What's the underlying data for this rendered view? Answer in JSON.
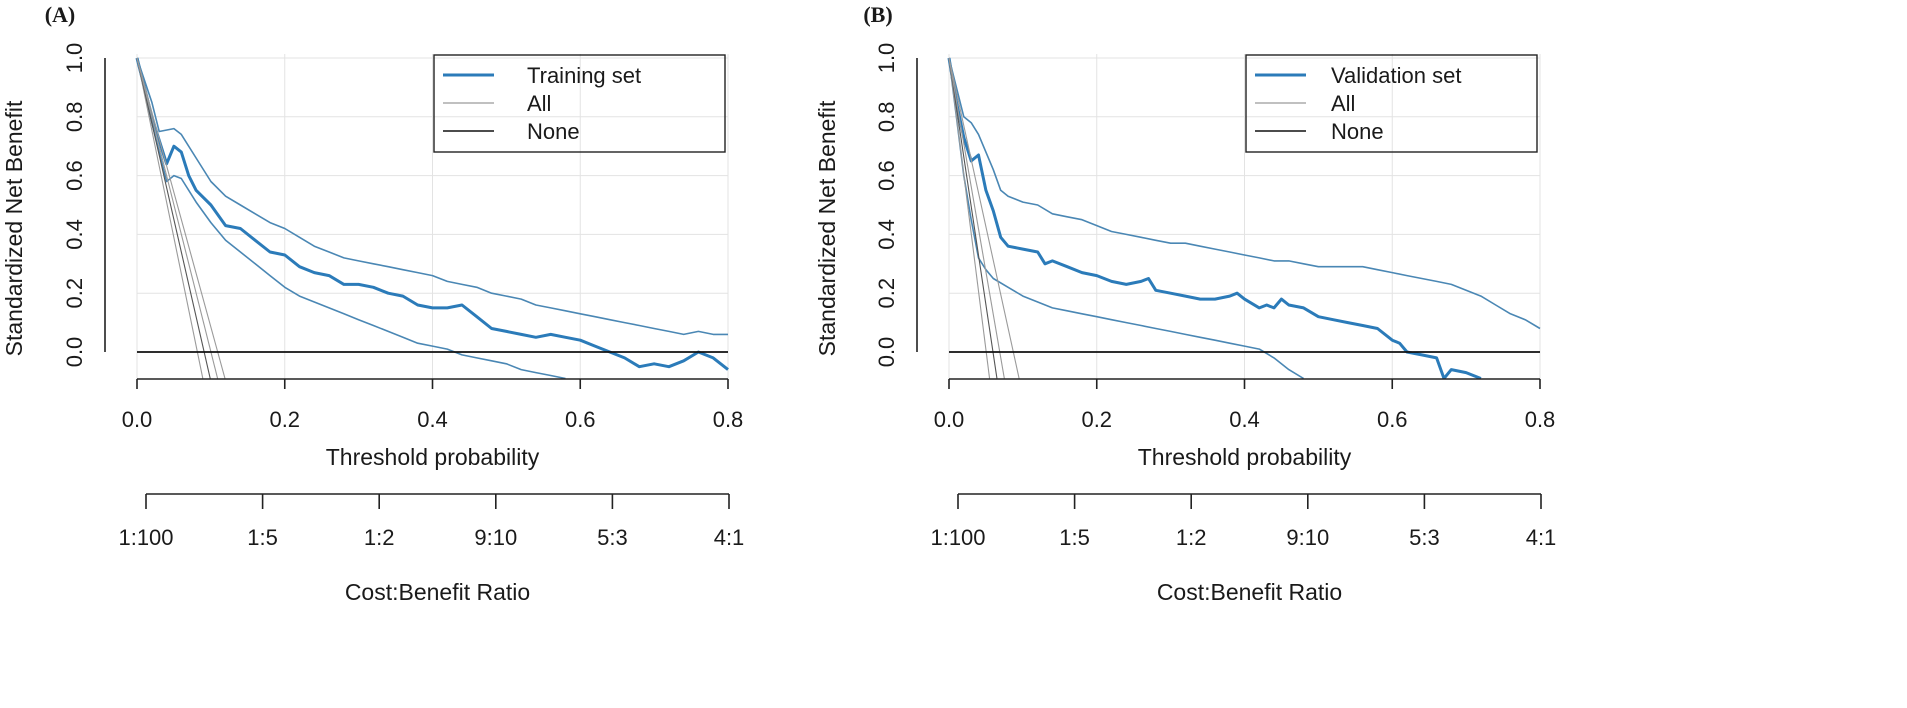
{
  "chart_data": [
    {
      "panel_label": "(A)",
      "type": "line",
      "title": "",
      "xlabel": "Threshold probability",
      "ylabel": "Standardized Net Benefit",
      "xlim": [
        0,
        0.8
      ],
      "ylim": [
        -0.09,
        1.0
      ],
      "x_ticks": [
        "0.0",
        "0.2",
        "0.4",
        "0.6",
        "0.8"
      ],
      "y_ticks": [
        "0.0",
        "0.2",
        "0.4",
        "0.6",
        "0.8",
        "1.0"
      ],
      "grid": true,
      "legend_position": "top-right",
      "legend": [
        "Training set",
        "All",
        "None"
      ],
      "cost_benefit_label": "Cost:Benefit Ratio",
      "cost_benefit_ticks": [
        "1:100",
        "1:5",
        "1:2",
        "9:10",
        "5:3",
        "4:1"
      ],
      "colors": {
        "model": "#2b7bb9",
        "ci": "#4a87b4",
        "all": "#9a9a9a",
        "none": "#111111"
      },
      "series": [
        {
          "name": "Training set",
          "role": "model",
          "x": [
            0.0,
            0.02,
            0.04,
            0.05,
            0.06,
            0.07,
            0.08,
            0.1,
            0.12,
            0.14,
            0.16,
            0.18,
            0.2,
            0.22,
            0.24,
            0.26,
            0.28,
            0.3,
            0.32,
            0.34,
            0.36,
            0.38,
            0.4,
            0.42,
            0.44,
            0.46,
            0.48,
            0.5,
            0.52,
            0.54,
            0.56,
            0.58,
            0.6,
            0.62,
            0.64,
            0.66,
            0.68,
            0.7,
            0.72,
            0.74,
            0.76,
            0.78,
            0.8
          ],
          "y": [
            1.0,
            0.8,
            0.64,
            0.7,
            0.68,
            0.6,
            0.55,
            0.5,
            0.43,
            0.42,
            0.38,
            0.34,
            0.33,
            0.29,
            0.27,
            0.26,
            0.23,
            0.23,
            0.22,
            0.2,
            0.19,
            0.16,
            0.15,
            0.15,
            0.16,
            0.12,
            0.08,
            0.07,
            0.06,
            0.05,
            0.06,
            0.05,
            0.04,
            0.02,
            0.0,
            -0.02,
            -0.05,
            -0.04,
            -0.05,
            -0.03,
            0.0,
            -0.02,
            -0.06
          ]
        },
        {
          "name": "Training set upper CI",
          "role": "ci",
          "x": [
            0.0,
            0.02,
            0.03,
            0.05,
            0.06,
            0.08,
            0.1,
            0.12,
            0.14,
            0.16,
            0.18,
            0.2,
            0.22,
            0.24,
            0.26,
            0.28,
            0.3,
            0.32,
            0.34,
            0.36,
            0.38,
            0.4,
            0.42,
            0.44,
            0.46,
            0.48,
            0.5,
            0.52,
            0.54,
            0.56,
            0.58,
            0.6,
            0.62,
            0.64,
            0.66,
            0.68,
            0.7,
            0.72,
            0.74,
            0.76,
            0.78,
            0.8
          ],
          "y": [
            1.0,
            0.85,
            0.75,
            0.76,
            0.74,
            0.66,
            0.58,
            0.53,
            0.5,
            0.47,
            0.44,
            0.42,
            0.39,
            0.36,
            0.34,
            0.32,
            0.31,
            0.3,
            0.29,
            0.28,
            0.27,
            0.26,
            0.24,
            0.23,
            0.22,
            0.2,
            0.19,
            0.18,
            0.16,
            0.15,
            0.14,
            0.13,
            0.12,
            0.11,
            0.1,
            0.09,
            0.08,
            0.07,
            0.06,
            0.07,
            0.06,
            0.06
          ]
        },
        {
          "name": "Training set lower CI",
          "role": "ci",
          "x": [
            0.0,
            0.02,
            0.04,
            0.05,
            0.06,
            0.08,
            0.1,
            0.12,
            0.14,
            0.16,
            0.18,
            0.2,
            0.22,
            0.24,
            0.26,
            0.28,
            0.3,
            0.32,
            0.34,
            0.36,
            0.38,
            0.4,
            0.42,
            0.44,
            0.46,
            0.48,
            0.5,
            0.52,
            0.54,
            0.56,
            0.58
          ],
          "y": [
            1.0,
            0.78,
            0.58,
            0.6,
            0.59,
            0.51,
            0.44,
            0.38,
            0.34,
            0.3,
            0.26,
            0.22,
            0.19,
            0.17,
            0.15,
            0.13,
            0.11,
            0.09,
            0.07,
            0.05,
            0.03,
            0.02,
            0.01,
            -0.01,
            -0.02,
            -0.03,
            -0.04,
            -0.06,
            -0.07,
            -0.08,
            -0.09
          ]
        },
        {
          "name": "All",
          "role": "all",
          "x": [
            0.0,
            0.0891,
            0.0,
            0.0991,
            0.0,
            0.1091,
            0.0,
            0.1191
          ],
          "y": [
            1.0,
            -0.09,
            1.0,
            -0.09,
            1.0,
            -0.09,
            1.0,
            -0.09
          ]
        },
        {
          "name": "None",
          "role": "none",
          "x": [
            0.0,
            0.8
          ],
          "y": [
            0.0,
            0.0
          ]
        }
      ]
    },
    {
      "panel_label": "(B)",
      "type": "line",
      "title": "",
      "xlabel": "Threshold probability",
      "ylabel": "Standardized Net Benefit",
      "xlim": [
        0,
        0.8
      ],
      "ylim": [
        -0.09,
        1.0
      ],
      "x_ticks": [
        "0.0",
        "0.2",
        "0.4",
        "0.6",
        "0.8"
      ],
      "y_ticks": [
        "0.0",
        "0.2",
        "0.4",
        "0.6",
        "0.8",
        "1.0"
      ],
      "grid": true,
      "legend_position": "top-right",
      "legend": [
        "Validation set",
        "All",
        "None"
      ],
      "cost_benefit_label": "Cost:Benefit Ratio",
      "cost_benefit_ticks": [
        "1:100",
        "1:5",
        "1:2",
        "9:10",
        "5:3",
        "4:1"
      ],
      "colors": {
        "model": "#2b7bb9",
        "ci": "#4a87b4",
        "all": "#9a9a9a",
        "none": "#111111"
      },
      "series": [
        {
          "name": "Validation set",
          "role": "model",
          "x": [
            0.0,
            0.01,
            0.02,
            0.03,
            0.04,
            0.05,
            0.06,
            0.07,
            0.08,
            0.1,
            0.12,
            0.13,
            0.14,
            0.16,
            0.18,
            0.2,
            0.22,
            0.24,
            0.26,
            0.27,
            0.28,
            0.3,
            0.32,
            0.34,
            0.36,
            0.38,
            0.39,
            0.4,
            0.42,
            0.43,
            0.44,
            0.45,
            0.46,
            0.48,
            0.5,
            0.52,
            0.54,
            0.56,
            0.58,
            0.6,
            0.61,
            0.62,
            0.64,
            0.66,
            0.67,
            0.68,
            0.7,
            0.72
          ],
          "y": [
            1.0,
            0.85,
            0.73,
            0.65,
            0.67,
            0.55,
            0.48,
            0.39,
            0.36,
            0.35,
            0.34,
            0.3,
            0.31,
            0.29,
            0.27,
            0.26,
            0.24,
            0.23,
            0.24,
            0.25,
            0.21,
            0.2,
            0.19,
            0.18,
            0.18,
            0.19,
            0.2,
            0.18,
            0.15,
            0.16,
            0.15,
            0.18,
            0.16,
            0.15,
            0.12,
            0.11,
            0.1,
            0.09,
            0.08,
            0.04,
            0.03,
            0.0,
            -0.01,
            -0.02,
            -0.09,
            -0.06,
            -0.07,
            -0.09
          ]
        },
        {
          "name": "Validation set upper CI",
          "role": "ci",
          "x": [
            0.0,
            0.01,
            0.02,
            0.03,
            0.04,
            0.05,
            0.06,
            0.07,
            0.08,
            0.1,
            0.12,
            0.14,
            0.16,
            0.18,
            0.2,
            0.22,
            0.24,
            0.26,
            0.28,
            0.3,
            0.32,
            0.34,
            0.36,
            0.38,
            0.4,
            0.42,
            0.44,
            0.46,
            0.48,
            0.5,
            0.52,
            0.54,
            0.56,
            0.58,
            0.6,
            0.62,
            0.64,
            0.66,
            0.68,
            0.7,
            0.72,
            0.74,
            0.76,
            0.78,
            0.8
          ],
          "y": [
            1.0,
            0.9,
            0.8,
            0.78,
            0.74,
            0.68,
            0.62,
            0.55,
            0.53,
            0.51,
            0.5,
            0.47,
            0.46,
            0.45,
            0.43,
            0.41,
            0.4,
            0.39,
            0.38,
            0.37,
            0.37,
            0.36,
            0.35,
            0.34,
            0.33,
            0.32,
            0.31,
            0.31,
            0.3,
            0.29,
            0.29,
            0.29,
            0.29,
            0.28,
            0.27,
            0.26,
            0.25,
            0.24,
            0.23,
            0.21,
            0.19,
            0.16,
            0.13,
            0.11,
            0.08
          ]
        },
        {
          "name": "Validation set lower CI",
          "role": "ci",
          "x": [
            0.0,
            0.01,
            0.02,
            0.03,
            0.04,
            0.05,
            0.06,
            0.08,
            0.1,
            0.12,
            0.14,
            0.16,
            0.18,
            0.2,
            0.22,
            0.24,
            0.26,
            0.28,
            0.3,
            0.32,
            0.34,
            0.36,
            0.38,
            0.4,
            0.42,
            0.44,
            0.46,
            0.48
          ],
          "y": [
            1.0,
            0.8,
            0.6,
            0.45,
            0.32,
            0.28,
            0.25,
            0.22,
            0.19,
            0.17,
            0.15,
            0.14,
            0.13,
            0.12,
            0.11,
            0.1,
            0.09,
            0.08,
            0.07,
            0.06,
            0.05,
            0.04,
            0.03,
            0.02,
            0.01,
            -0.02,
            -0.06,
            -0.09
          ]
        },
        {
          "name": "All",
          "role": "all",
          "x": [
            0.0,
            0.0549,
            0.0,
            0.0649,
            0.0,
            0.0749,
            0.0,
            0.0949
          ],
          "y": [
            1.0,
            -0.09,
            1.0,
            -0.09,
            1.0,
            -0.09,
            1.0,
            -0.09
          ]
        },
        {
          "name": "None",
          "role": "none",
          "x": [
            0.0,
            0.8
          ],
          "y": [
            0.0,
            0.0
          ]
        }
      ]
    }
  ]
}
